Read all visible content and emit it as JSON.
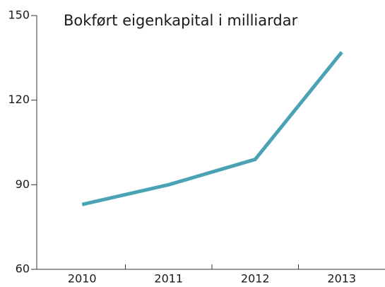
{
  "chart_data": {
    "type": "line",
    "title": "Bokført eigenkapital i milliardar",
    "categories": [
      "2010",
      "2011",
      "2012",
      "2013"
    ],
    "series": [
      {
        "color": "#4aa3b5",
        "values": [
          83,
          90,
          99,
          137
        ]
      }
    ],
    "ylim": [
      60,
      150
    ],
    "yticks": [
      60,
      90,
      120,
      150
    ],
    "grid": false
  }
}
